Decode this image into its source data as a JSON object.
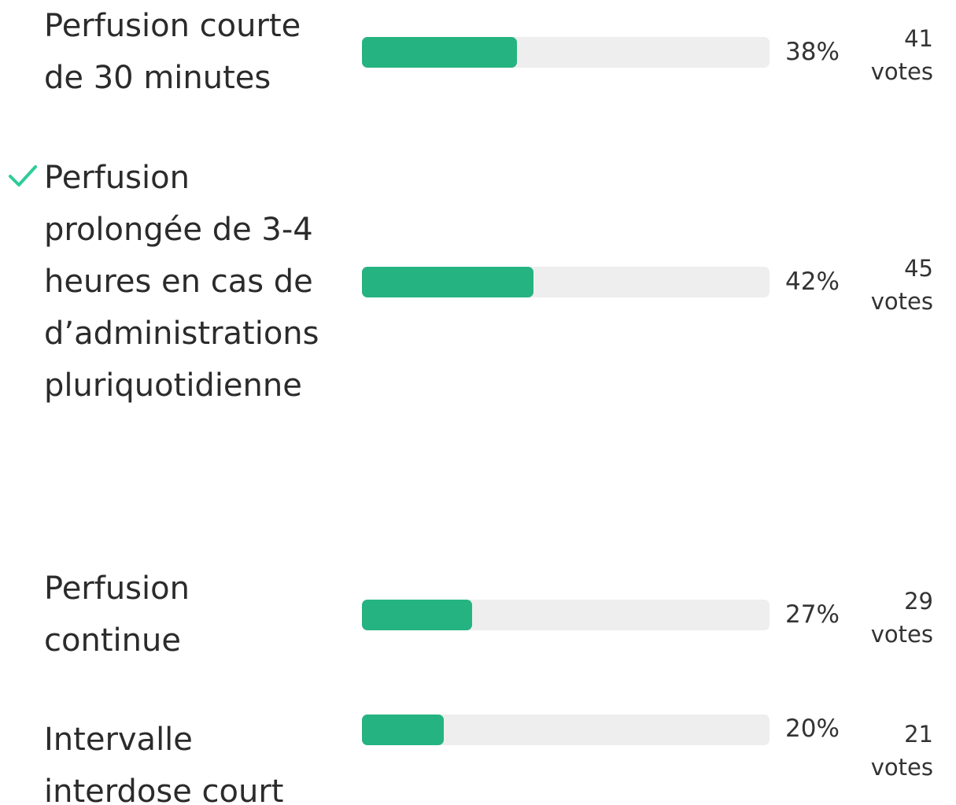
{
  "poll": {
    "votes_unit": "votes",
    "options": [
      {
        "label": "Perfusion courte de 30 minutes",
        "percent": 38,
        "percent_label": "38%",
        "votes": 41,
        "correct": false
      },
      {
        "label": "Perfusion prolongée de 3-4 heures en cas de d’administrations pluriquotidienne",
        "percent": 42,
        "percent_label": "42%",
        "votes": 45,
        "correct": true
      },
      {
        "label": "Perfusion continue",
        "percent": 27,
        "percent_label": "27%",
        "votes": 29,
        "correct": false
      },
      {
        "label": "Intervalle interdose court",
        "percent": 20,
        "percent_label": "20%",
        "votes": 21,
        "correct": false
      }
    ]
  }
}
